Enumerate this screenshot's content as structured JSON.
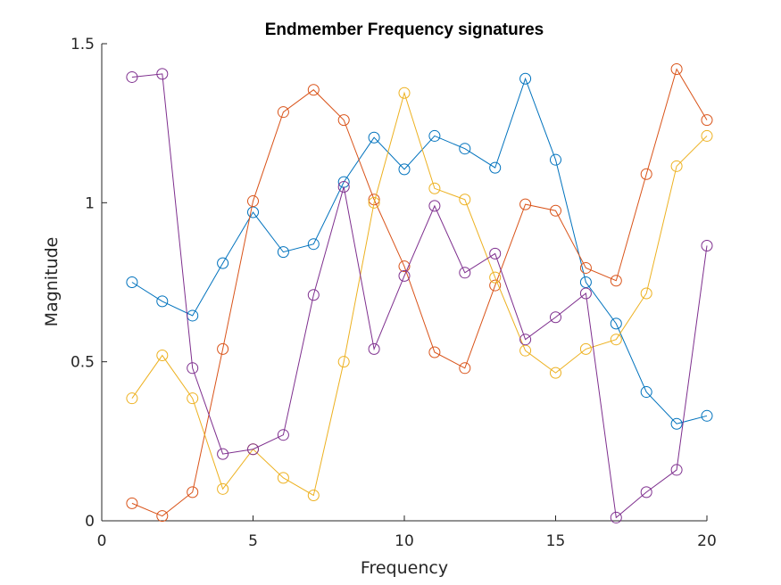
{
  "chart_data": {
    "type": "line",
    "title": "Endmember Frequency signatures",
    "xlabel": "Frequency",
    "ylabel": "Magnitude",
    "xlim": [
      0,
      20
    ],
    "ylim": [
      0,
      1.5
    ],
    "x_ticks": [
      "0",
      "5",
      "10",
      "15",
      "20"
    ],
    "y_ticks": [
      "0",
      "0.5",
      "1",
      "1.5"
    ],
    "grid": false,
    "marker": "circle",
    "x": [
      1,
      2,
      3,
      4,
      5,
      6,
      7,
      8,
      9,
      10,
      11,
      12,
      13,
      14,
      15,
      16,
      17,
      18,
      19,
      20
    ],
    "series": [
      {
        "color": "#0072bd",
        "values": [
          0.75,
          0.69,
          0.645,
          0.81,
          0.97,
          0.845,
          0.87,
          1.065,
          1.205,
          1.105,
          1.21,
          1.17,
          1.11,
          1.39,
          1.135,
          0.75,
          0.62,
          0.405,
          0.305,
          0.33
        ]
      },
      {
        "color": "#d95319",
        "values": [
          0.055,
          0.015,
          0.09,
          0.54,
          1.005,
          1.285,
          1.355,
          1.26,
          1.01,
          0.8,
          0.53,
          0.48,
          0.74,
          0.995,
          0.975,
          0.795,
          0.755,
          1.09,
          1.42,
          1.26
        ]
      },
      {
        "color": "#edb120",
        "values": [
          0.385,
          0.52,
          0.385,
          0.1,
          0.225,
          0.135,
          0.08,
          0.5,
          1.0,
          1.345,
          1.045,
          1.01,
          0.765,
          0.535,
          0.465,
          0.54,
          0.57,
          0.715,
          1.115,
          1.21
        ]
      },
      {
        "color": "#7e2f8e",
        "values": [
          1.395,
          1.405,
          0.48,
          0.21,
          0.225,
          0.27,
          0.71,
          1.05,
          0.54,
          0.77,
          0.99,
          0.78,
          0.84,
          0.57,
          0.64,
          0.715,
          0.01,
          0.09,
          0.16,
          0.865
        ]
      }
    ]
  }
}
